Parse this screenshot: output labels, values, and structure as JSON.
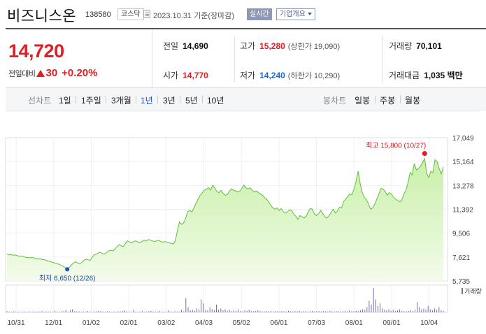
{
  "header": {
    "stock_name": "비즈니스온",
    "stock_code": "138580",
    "market": "코스닥",
    "date_text": "2023.10.31 기준(장마감)",
    "realtime_label": "실시간",
    "overview_label": "기업개요"
  },
  "quote": {
    "price": "14,720",
    "change_label": "전일대비",
    "change_value": "30",
    "change_pct": "+0.20%",
    "direction": "up",
    "up_color": "#e01e24",
    "down_color": "#1a6ad6"
  },
  "stats": {
    "prev_close": {
      "label": "전일",
      "value": "14,690"
    },
    "high": {
      "label": "고가",
      "value": "15,280",
      "sub": "(상한가 19,090)"
    },
    "volume": {
      "label": "거래량",
      "value": "70,101"
    },
    "open": {
      "label": "시가",
      "value": "14,770"
    },
    "low": {
      "label": "저가",
      "value": "14,240",
      "sub": "(하한가 10,290)"
    },
    "amount": {
      "label": "거래대금",
      "value": "1,035 백만"
    }
  },
  "period": {
    "line_chart_title": "선차트",
    "line_options": [
      "1일",
      "1주일",
      "3개월",
      "1년",
      "3년",
      "5년",
      "10년"
    ],
    "selected": "1년",
    "candle_chart_title": "봉차트",
    "candle_options": [
      "일봉",
      "주봉",
      "월봉"
    ]
  },
  "chart_data": {
    "type": "area",
    "y_ticks": [
      "17,049",
      "15,164",
      "13,278",
      "11,392",
      "9,506",
      "7,621",
      "5,735"
    ],
    "ylim": [
      5735,
      17049
    ],
    "x_ticks": [
      "10/31",
      "12/01",
      "01/02",
      "02/01",
      "03/02",
      "04/03",
      "05/02",
      "06/01",
      "07/03",
      "08/01",
      "09/01",
      "10/04"
    ],
    "series": [
      {
        "values": [
          7850,
          7800,
          7800,
          7760,
          7780,
          7720,
          7680,
          7700,
          7650,
          7600,
          7580,
          7560,
          7600,
          7550,
          7480,
          7450,
          7500,
          7420,
          7400,
          7350,
          7300,
          7250,
          7200,
          7150,
          7100,
          7050,
          6980,
          6900,
          6780,
          6650,
          6800,
          7000,
          7150,
          7250,
          7150,
          7100,
          7200,
          7350,
          7450,
          7400,
          7350,
          7600,
          7800,
          7850,
          7950,
          8000,
          7900,
          7850,
          8000,
          8100,
          8150,
          8100,
          8250,
          8450,
          8600,
          8500,
          8450,
          8700,
          8900,
          8800,
          8750,
          8850,
          8900,
          8800,
          8750,
          8850,
          8950,
          8900,
          9000,
          8950,
          8900,
          8850,
          8900,
          8950,
          8850,
          8800,
          8850,
          8800,
          8750,
          8700,
          8650,
          8900,
          9700,
          10400,
          10200,
          10300,
          10700,
          11200,
          11300,
          11200,
          11500,
          11900,
          12200,
          12500,
          12700,
          12900,
          13000,
          13100,
          12900,
          13300,
          13100,
          12800,
          12700,
          12900,
          12650,
          12500,
          12550,
          12800,
          13000,
          12900,
          12850,
          12750,
          12800,
          13050,
          13300,
          13100,
          13000,
          13100,
          12900,
          12750,
          12850,
          12700,
          12600,
          12500,
          12300,
          12200,
          11950,
          11700,
          11500,
          11400,
          11500,
          11300,
          11450,
          11200,
          11100,
          11200,
          11350,
          11300,
          11000,
          10850,
          10600,
          10900,
          10800,
          10700,
          10850,
          11200,
          11450,
          11400,
          11000,
          10900,
          11050,
          11300,
          11050,
          10800,
          10700,
          10900,
          11150,
          11400,
          11100,
          11250,
          11550,
          11500,
          12000,
          12200,
          12400,
          12600,
          12550,
          13000,
          13600,
          14400,
          13400,
          12700,
          12300,
          12150,
          11800,
          11400,
          11500,
          11800,
          12200,
          12600,
          13050,
          13000,
          12800,
          12500,
          12700,
          12600,
          12350,
          12200,
          12100,
          12000,
          12100,
          12600,
          12900,
          13500,
          14300,
          14100,
          15000,
          14500,
          14600,
          14800,
          15100,
          15400,
          14200,
          13900,
          14400,
          14300,
          15300,
          15150,
          14600,
          14200,
          14720
        ]
      }
    ],
    "high_label": "최고 15,800 (10/27)",
    "low_label": "최저 6,650 (12/26)",
    "volume": [
      0.05,
      0.03,
      0.02,
      0.04,
      0.02,
      0.03,
      0.02,
      0.02,
      0.03,
      0.02,
      0.04,
      0.02,
      0.03,
      0.02,
      0.02,
      0.03,
      0.05,
      0.02,
      0.03,
      0.02,
      0.03,
      0.02,
      0.06,
      0.03,
      0.02,
      0.04,
      0.05,
      0.1,
      0.03,
      0.08,
      0.12,
      0.05,
      0.03,
      0.04,
      0.02,
      0.03,
      0.02,
      0.05,
      0.03,
      0.02,
      0.04,
      0.03,
      0.06,
      0.05,
      0.03,
      0.02,
      0.04,
      0.03,
      0.02,
      0.03,
      0.02,
      0.04,
      0.03,
      0.05,
      0.08,
      0.04,
      0.03,
      0.02,
      0.1,
      0.03,
      0.02,
      0.03,
      0.05,
      0.03,
      0.02,
      0.04,
      0.06,
      0.03,
      0.02,
      0.03,
      0.05,
      0.02,
      0.03,
      0.02,
      0.08,
      0.03,
      0.02,
      0.04,
      0.03,
      0.02,
      0.1,
      0.04,
      0.55,
      0.2,
      0.08,
      0.1,
      0.06,
      0.15,
      0.12,
      0.5,
      0.35,
      0.1,
      0.08,
      0.2,
      0.12,
      0.09,
      0.3,
      0.1,
      0.15,
      0.08,
      0.12,
      0.06,
      0.1,
      0.05,
      0.08,
      0.06,
      0.12,
      0.05,
      0.04,
      0.08,
      0.06,
      0.1,
      0.05,
      0.04,
      0.06,
      0.08,
      0.05,
      0.04,
      0.03,
      0.05,
      0.04,
      0.06,
      0.03,
      0.05,
      0.04,
      0.03,
      0.05,
      0.04,
      0.03,
      0.06,
      0.04,
      0.03,
      0.05,
      0.04,
      0.06,
      0.03,
      0.04,
      0.05,
      0.03,
      0.04,
      0.06,
      0.03,
      0.05,
      0.04,
      0.03,
      0.05,
      0.04,
      0.03,
      0.06,
      0.04,
      0.03,
      0.05,
      0.04,
      0.03,
      0.05,
      0.06,
      0.04,
      0.08,
      0.05,
      0.04,
      0.06,
      0.05,
      0.08,
      0.12,
      0.1,
      0.2,
      0.45,
      0.3,
      0.95,
      0.5,
      0.25,
      0.35,
      0.15,
      0.1,
      0.08,
      0.12,
      0.06,
      0.1,
      0.05,
      0.08,
      0.12,
      0.06,
      0.05,
      0.04,
      0.06,
      0.08,
      0.05,
      0.1,
      0.4,
      0.2,
      0.12,
      0.15,
      0.1,
      0.25,
      0.12,
      0.08,
      0.15,
      0.1,
      0.2,
      0.08,
      0.06
    ],
    "volume_label": "거래량",
    "line_color": "#5fbf3a",
    "fill_color": "#c9f0a8",
    "volume_color": "#7b6fa8"
  }
}
